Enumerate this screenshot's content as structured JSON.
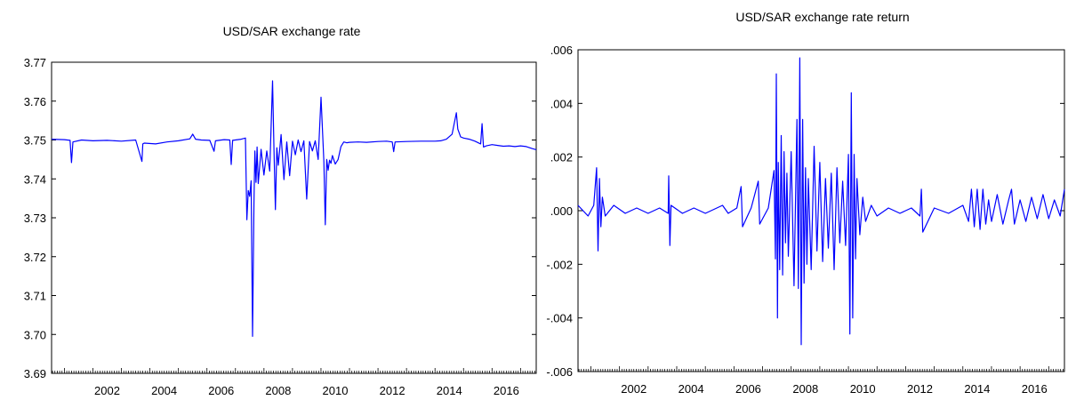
{
  "chart_data": [
    {
      "type": "line",
      "title": "USD/SAR exchange rate",
      "xlabel": "",
      "ylabel": "",
      "xlim": [
        2000.55,
        2017.55
      ],
      "ylim": [
        3.69,
        3.77
      ],
      "yticks": [
        3.69,
        3.7,
        3.71,
        3.72,
        3.73,
        3.74,
        3.75,
        3.76,
        3.77
      ],
      "yticklabels": [
        "3.69",
        "3.70",
        "3.71",
        "3.72",
        "3.73",
        "3.74",
        "3.75",
        "3.76",
        "3.77"
      ],
      "xticks": [
        2002,
        2004,
        2006,
        2008,
        2010,
        2012,
        2014,
        2016
      ],
      "xticklabels": [
        "2002",
        "2004",
        "2006",
        "2008",
        "2010",
        "2012",
        "2014",
        "2016"
      ],
      "grid": false,
      "legend": "none",
      "color": "#0000ff",
      "series": [
        {
          "x": [
            2000.55,
            2001.0,
            2001.2,
            2001.25,
            2001.3,
            2001.6,
            2002.0,
            2002.5,
            2003.0,
            2003.5,
            2003.72,
            2003.75,
            2003.8,
            2004.2,
            2004.6,
            2005.0,
            2005.4,
            2005.5,
            2005.6,
            2005.8,
            2006.1,
            2006.25,
            2006.3,
            2006.6,
            2006.8,
            2006.85,
            2006.9,
            2007.2,
            2007.35,
            2007.4,
            2007.45,
            2007.5,
            2007.55,
            2007.6,
            2007.65,
            2007.68,
            2007.72,
            2007.76,
            2007.8,
            2007.9,
            2008.0,
            2008.1,
            2008.2,
            2008.3,
            2008.35,
            2008.4,
            2008.45,
            2008.5,
            2008.6,
            2008.7,
            2008.8,
            2008.9,
            2009.0,
            2009.1,
            2009.2,
            2009.3,
            2009.4,
            2009.5,
            2009.6,
            2009.7,
            2009.8,
            2009.9,
            2010.0,
            2010.1,
            2010.15,
            2010.2,
            2010.25,
            2010.3,
            2010.35,
            2010.4,
            2010.5,
            2010.6,
            2010.7,
            2010.8,
            2010.9,
            2011.0,
            2011.3,
            2011.6,
            2012.0,
            2012.3,
            2012.5,
            2012.55,
            2012.6,
            2013.0,
            2013.5,
            2014.0,
            2014.2,
            2014.4,
            2014.6,
            2014.75,
            2014.8,
            2014.9,
            2015.0,
            2015.2,
            2015.4,
            2015.6,
            2015.65,
            2015.7,
            2015.8,
            2016.0,
            2016.2,
            2016.4,
            2016.6,
            2016.8,
            2017.0,
            2017.2,
            2017.4,
            2017.55
          ],
          "y": [
            3.7502,
            3.7501,
            3.7499,
            3.7442,
            3.7495,
            3.75,
            3.7498,
            3.7499,
            3.7497,
            3.75,
            3.7445,
            3.749,
            3.7492,
            3.749,
            3.7495,
            3.7498,
            3.7503,
            3.7515,
            3.7502,
            3.75,
            3.7499,
            3.7471,
            3.7498,
            3.7501,
            3.75,
            3.7437,
            3.7499,
            3.7502,
            3.7505,
            3.7295,
            3.737,
            3.7355,
            3.7395,
            3.6995,
            3.734,
            3.7472,
            3.7391,
            3.7482,
            3.7388,
            3.7476,
            3.741,
            3.7472,
            3.742,
            3.7652,
            3.7475,
            3.7321,
            3.748,
            3.7435,
            3.7514,
            3.7398,
            3.7495,
            3.7408,
            3.7497,
            3.7462,
            3.75,
            3.747,
            3.7498,
            3.7348,
            3.7496,
            3.7472,
            3.7498,
            3.745,
            3.761,
            3.7445,
            3.7282,
            3.745,
            3.7422,
            3.7448,
            3.744,
            3.746,
            3.7438,
            3.745,
            3.7483,
            3.7495,
            3.7493,
            3.7494,
            3.7495,
            3.7494,
            3.7496,
            3.7497,
            3.7495,
            3.747,
            3.7495,
            3.7496,
            3.7497,
            3.7497,
            3.7498,
            3.7502,
            3.7515,
            3.757,
            3.7528,
            3.7508,
            3.7505,
            3.7502,
            3.7497,
            3.749,
            3.7542,
            3.7482,
            3.7485,
            3.7488,
            3.7486,
            3.7484,
            3.7485,
            3.7483,
            3.7485,
            3.7483,
            3.7478,
            3.7475
          ]
        }
      ]
    },
    {
      "type": "line",
      "title": "USD/SAR exchange rate return",
      "xlabel": "",
      "ylabel": "",
      "xlim": [
        2000.55,
        2017.55
      ],
      "ylim": [
        -0.006,
        0.006
      ],
      "yticks": [
        -0.006,
        -0.004,
        -0.002,
        0.0,
        0.002,
        0.004,
        0.006
      ],
      "yticklabels": [
        "-.006",
        "-.004",
        "-.002",
        ".000",
        ".002",
        ".004",
        ".006"
      ],
      "xticks": [
        2002,
        2004,
        2006,
        2008,
        2010,
        2012,
        2014,
        2016
      ],
      "xticklabels": [
        "2002",
        "2004",
        "2006",
        "2008",
        "2010",
        "2012",
        "2014",
        "2016"
      ],
      "grid": false,
      "legend": "none",
      "color": "#0000ff",
      "series": [
        {
          "x": [
            2000.55,
            2000.9,
            2001.1,
            2001.2,
            2001.25,
            2001.3,
            2001.35,
            2001.4,
            2001.5,
            2001.8,
            2002.2,
            2002.6,
            2003.0,
            2003.4,
            2003.7,
            2003.72,
            2003.76,
            2003.8,
            2004.2,
            2004.6,
            2005.0,
            2005.4,
            2005.6,
            2005.8,
            2006.1,
            2006.25,
            2006.3,
            2006.6,
            2006.85,
            2006.9,
            2007.2,
            2007.4,
            2007.45,
            2007.48,
            2007.52,
            2007.55,
            2007.6,
            2007.65,
            2007.7,
            2007.75,
            2007.8,
            2007.85,
            2007.9,
            2008.0,
            2008.1,
            2008.2,
            2008.25,
            2008.3,
            2008.35,
            2008.4,
            2008.45,
            2008.5,
            2008.55,
            2008.6,
            2008.7,
            2008.8,
            2008.9,
            2009.0,
            2009.1,
            2009.2,
            2009.3,
            2009.4,
            2009.5,
            2009.6,
            2009.7,
            2009.8,
            2009.9,
            2010.0,
            2010.05,
            2010.1,
            2010.15,
            2010.2,
            2010.25,
            2010.3,
            2010.4,
            2010.5,
            2010.6,
            2010.8,
            2011.0,
            2011.4,
            2011.8,
            2012.2,
            2012.5,
            2012.55,
            2012.6,
            2013.0,
            2013.5,
            2014.0,
            2014.2,
            2014.3,
            2014.4,
            2014.5,
            2014.6,
            2014.7,
            2014.8,
            2014.9,
            2015.0,
            2015.2,
            2015.4,
            2015.6,
            2015.7,
            2015.8,
            2016.0,
            2016.2,
            2016.4,
            2016.6,
            2016.8,
            2017.0,
            2017.2,
            2017.4,
            2017.55
          ],
          "y": [
            0.0002,
            -0.0002,
            0.0002,
            0.0016,
            -0.0015,
            0.0012,
            -0.0006,
            0.0005,
            -0.0002,
            0.0002,
            -0.0001,
            0.0001,
            -0.0001,
            0.0001,
            -0.0001,
            0.0013,
            -0.0013,
            0.0002,
            -0.0001,
            0.0001,
            -0.0001,
            0.0001,
            0.0002,
            -0.0001,
            0.0001,
            0.0009,
            -0.0006,
            0.0001,
            0.0011,
            -0.0005,
            0.0001,
            0.0015,
            -0.0018,
            0.0051,
            -0.004,
            0.0018,
            -0.0022,
            0.0028,
            -0.0024,
            0.0022,
            -0.0012,
            0.0014,
            -0.0017,
            0.0022,
            -0.0028,
            0.0034,
            -0.0029,
            0.0057,
            -0.005,
            0.0034,
            -0.0027,
            0.0016,
            -0.002,
            0.0012,
            -0.0022,
            0.0024,
            -0.0015,
            0.0018,
            -0.0019,
            0.0012,
            -0.0014,
            0.0014,
            -0.0022,
            0.0016,
            -0.0012,
            0.0011,
            -0.0013,
            0.0021,
            -0.0046,
            0.0044,
            -0.004,
            0.0021,
            -0.0018,
            0.0012,
            -0.0009,
            0.0005,
            -0.0004,
            0.0002,
            -0.0002,
            0.0001,
            -0.0001,
            0.0001,
            -0.0002,
            0.0008,
            -0.0008,
            0.0001,
            -0.0001,
            0.0002,
            -0.0004,
            0.0008,
            -0.0006,
            0.0008,
            -0.0007,
            0.0008,
            -0.0005,
            0.0004,
            -0.0004,
            0.0006,
            -0.0005,
            0.0004,
            0.0008,
            -0.0005,
            0.0004,
            -0.0004,
            0.0005,
            -0.0003,
            0.0006,
            -0.0003,
            0.0004,
            -0.0002,
            0.0008
          ]
        }
      ]
    }
  ]
}
